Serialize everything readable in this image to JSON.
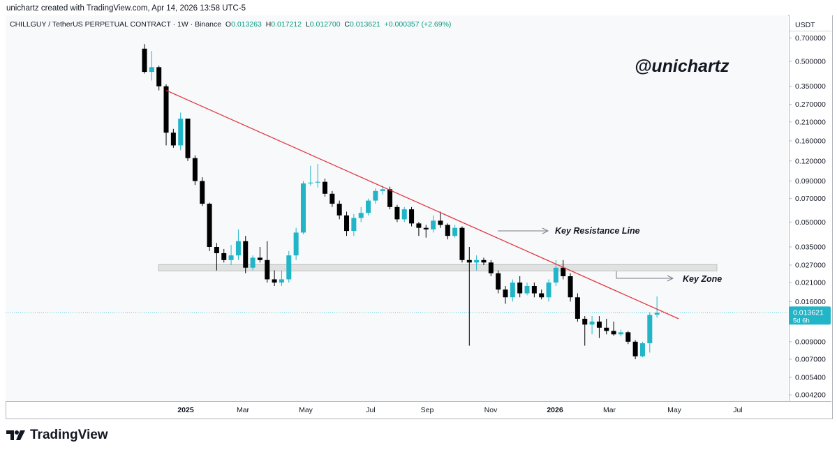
{
  "header": "unichartz created with TradingView.com, Apr 14, 2026 13:58 UTC-5",
  "symbol_info": {
    "symbol": "CHILLGUY / TetherUS PERPETUAL CONTRACT · 1W · Binance",
    "o_label": "O",
    "o_value": "0.013263",
    "h_label": "H",
    "h_value": "0.017212",
    "l_label": "L",
    "l_value": "0.012700",
    "c_label": "C",
    "c_value": "0.013621",
    "change": "+0.000357 (+2.69%)"
  },
  "currency": "USDT",
  "watermark": "@unichartz",
  "footer": {
    "brand": "TradingView"
  },
  "colors": {
    "up": "#22b5c8",
    "down": "#000000",
    "trendline": "#e0383e",
    "zone": "#d9d9d9",
    "price_tag": "#22b5c8"
  },
  "chart_data": {
    "type": "candlestick",
    "scale": "log",
    "title": "CHILLGUY / TetherUS PERPETUAL CONTRACT · 1W · Binance",
    "y_ticks": [
      "0.700000",
      "0.500000",
      "0.350000",
      "0.270000",
      "0.210000",
      "0.160000",
      "0.120000",
      "0.090000",
      "0.070000",
      "0.050000",
      "0.035000",
      "0.027000",
      "0.021000",
      "0.016000",
      "0.009000",
      "0.007000",
      "0.005400",
      "0.004200"
    ],
    "x_ticks": [
      "2025",
      "Mar",
      "May",
      "Jul",
      "Sep",
      "Nov",
      "2026",
      "Mar",
      "May",
      "Jul"
    ],
    "last_price": "0.013621",
    "countdown": "5d 6h",
    "candles": [
      [
        0.6,
        0.64,
        0.42,
        0.43
      ],
      [
        0.43,
        0.58,
        0.38,
        0.46
      ],
      [
        0.46,
        0.47,
        0.33,
        0.35
      ],
      [
        0.35,
        0.36,
        0.15,
        0.18
      ],
      [
        0.18,
        0.19,
        0.145,
        0.15
      ],
      [
        0.15,
        0.24,
        0.14,
        0.22
      ],
      [
        0.22,
        0.22,
        0.12,
        0.125
      ],
      [
        0.125,
        0.13,
        0.085,
        0.09
      ],
      [
        0.09,
        0.095,
        0.063,
        0.065
      ],
      [
        0.065,
        0.066,
        0.033,
        0.035
      ],
      [
        0.035,
        0.037,
        0.025,
        0.032
      ],
      [
        0.032,
        0.034,
        0.028,
        0.029
      ],
      [
        0.029,
        0.036,
        0.027,
        0.031
      ],
      [
        0.031,
        0.045,
        0.029,
        0.038
      ],
      [
        0.038,
        0.041,
        0.024,
        0.026
      ],
      [
        0.026,
        0.031,
        0.025,
        0.03
      ],
      [
        0.03,
        0.035,
        0.028,
        0.029
      ],
      [
        0.029,
        0.038,
        0.021,
        0.022
      ],
      [
        0.022,
        0.025,
        0.02,
        0.021
      ],
      [
        0.021,
        0.025,
        0.02,
        0.022
      ],
      [
        0.022,
        0.033,
        0.021,
        0.031
      ],
      [
        0.031,
        0.046,
        0.029,
        0.043
      ],
      [
        0.043,
        0.09,
        0.042,
        0.087
      ],
      [
        0.087,
        0.112,
        0.084,
        0.088
      ],
      [
        0.088,
        0.115,
        0.082,
        0.089
      ],
      [
        0.089,
        0.093,
        0.072,
        0.075
      ],
      [
        0.075,
        0.078,
        0.062,
        0.065
      ],
      [
        0.065,
        0.068,
        0.052,
        0.055
      ],
      [
        0.055,
        0.058,
        0.041,
        0.044
      ],
      [
        0.044,
        0.056,
        0.041,
        0.053
      ],
      [
        0.053,
        0.062,
        0.05,
        0.057
      ],
      [
        0.057,
        0.07,
        0.055,
        0.068
      ],
      [
        0.068,
        0.081,
        0.065,
        0.078
      ],
      [
        0.078,
        0.084,
        0.074,
        0.08
      ],
      [
        0.08,
        0.083,
        0.06,
        0.062
      ],
      [
        0.062,
        0.064,
        0.05,
        0.052
      ],
      [
        0.052,
        0.062,
        0.05,
        0.06
      ],
      [
        0.06,
        0.062,
        0.047,
        0.049
      ],
      [
        0.049,
        0.05,
        0.041,
        0.046
      ],
      [
        0.046,
        0.048,
        0.04,
        0.045
      ],
      [
        0.045,
        0.055,
        0.043,
        0.051
      ],
      [
        0.051,
        0.058,
        0.046,
        0.048
      ],
      [
        0.048,
        0.049,
        0.039,
        0.041
      ],
      [
        0.041,
        0.048,
        0.04,
        0.046
      ],
      [
        0.046,
        0.047,
        0.028,
        0.029
      ],
      [
        0.029,
        0.035,
        0.0085,
        0.028
      ],
      [
        0.028,
        0.031,
        0.025,
        0.029
      ],
      [
        0.029,
        0.03,
        0.027,
        0.028
      ],
      [
        0.028,
        0.029,
        0.023,
        0.024
      ],
      [
        0.024,
        0.025,
        0.018,
        0.019
      ],
      [
        0.019,
        0.02,
        0.0155,
        0.017
      ],
      [
        0.017,
        0.022,
        0.016,
        0.021
      ],
      [
        0.021,
        0.023,
        0.017,
        0.018
      ],
      [
        0.018,
        0.021,
        0.0175,
        0.02
      ],
      [
        0.02,
        0.021,
        0.017,
        0.018
      ],
      [
        0.018,
        0.019,
        0.0165,
        0.017
      ],
      [
        0.017,
        0.022,
        0.016,
        0.021
      ],
      [
        0.021,
        0.029,
        0.02,
        0.026
      ],
      [
        0.026,
        0.029,
        0.022,
        0.023
      ],
      [
        0.023,
        0.024,
        0.016,
        0.017
      ],
      [
        0.017,
        0.018,
        0.012,
        0.0125
      ],
      [
        0.0125,
        0.013,
        0.0085,
        0.0115
      ],
      [
        0.0115,
        0.013,
        0.01,
        0.012
      ],
      [
        0.012,
        0.013,
        0.0095,
        0.011
      ],
      [
        0.011,
        0.0125,
        0.01,
        0.0105
      ],
      [
        0.0105,
        0.012,
        0.0098,
        0.01
      ],
      [
        0.01,
        0.0107,
        0.0097,
        0.0103
      ],
      [
        0.0103,
        0.0105,
        0.0087,
        0.009
      ],
      [
        0.009,
        0.0092,
        0.007,
        0.0073
      ],
      [
        0.0073,
        0.009,
        0.0072,
        0.0088
      ],
      [
        0.0088,
        0.0137,
        0.0077,
        0.0132
      ],
      [
        0.013263,
        0.017212,
        0.0127,
        0.013621
      ]
    ],
    "annotations": [
      {
        "text": "Key Resistance Line"
      },
      {
        "text": "Key Zone"
      }
    ],
    "zone": [
      0.0248,
      0.0272
    ],
    "trendline": {
      "from": [
        3,
        0.33
      ],
      "to": [
        74,
        0.0125
      ]
    }
  }
}
